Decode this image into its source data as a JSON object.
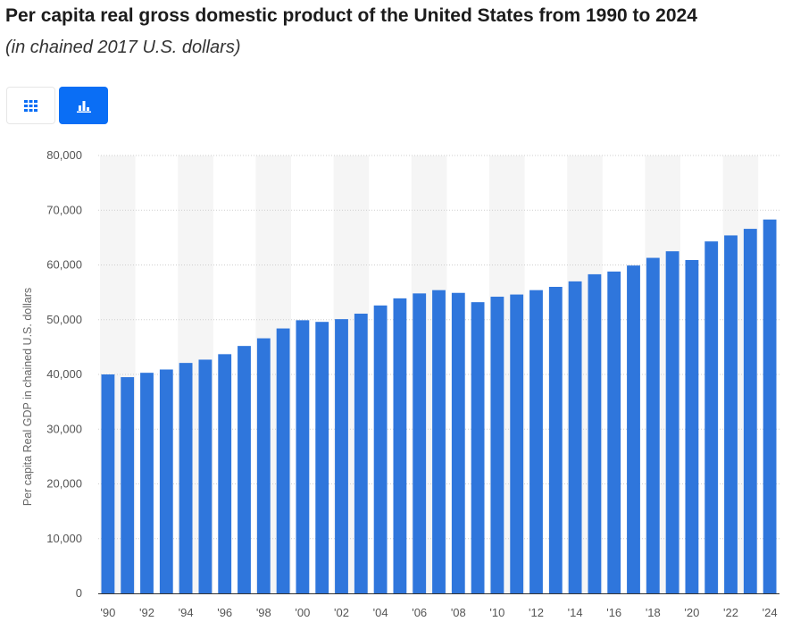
{
  "page": {
    "title": "Per capita real gross domestic product of the United States from 1990 to 2024",
    "subtitle": "(in chained 2017 U.S. dollars)"
  },
  "toolbar": {
    "table_view_icon": "grid-icon",
    "chart_view_icon": "bar-chart-icon"
  },
  "colors": {
    "bar": "#2f76dc",
    "accent": "#0a6ef5",
    "band": "#f5f5f5",
    "grid": "#cfcfcf"
  },
  "chart_data": {
    "type": "bar",
    "ylabel": "Per capita Real GDP in chained U.S. dollars",
    "xlabel": "",
    "ylim": [
      0,
      80000
    ],
    "y_ticks": [
      0,
      10000,
      20000,
      30000,
      40000,
      50000,
      60000,
      70000,
      80000
    ],
    "y_tick_labels": [
      "0",
      "10,000",
      "20,000",
      "30,000",
      "40,000",
      "50,000",
      "60,000",
      "70,000",
      "80,000"
    ],
    "categories": [
      "1990",
      "1991",
      "1992",
      "1993",
      "1994",
      "1995",
      "1996",
      "1997",
      "1998",
      "1999",
      "2000",
      "2001",
      "2002",
      "2003",
      "2004",
      "2005",
      "2006",
      "2007",
      "2008",
      "2009",
      "2010",
      "2011",
      "2012",
      "2013",
      "2014",
      "2015",
      "2016",
      "2017",
      "2018",
      "2019",
      "2020",
      "2021",
      "2022",
      "2023",
      "2024"
    ],
    "x_tick_labels": [
      "'90",
      "'92",
      "'94",
      "'96",
      "'98",
      "'00",
      "'02",
      "'04",
      "'06",
      "'08",
      "'10",
      "'12",
      "'14",
      "'16",
      "'18",
      "'20",
      "'22",
      "'24"
    ],
    "values": [
      40000,
      39500,
      40300,
      40900,
      42100,
      42700,
      43700,
      45200,
      46600,
      48400,
      49900,
      49600,
      50100,
      51100,
      52600,
      53900,
      54800,
      55400,
      54900,
      53200,
      54200,
      54600,
      55400,
      56000,
      57000,
      58300,
      58800,
      59900,
      61300,
      62500,
      60900,
      64300,
      65400,
      66600,
      68300
    ],
    "grid": true,
    "legend": "none"
  }
}
